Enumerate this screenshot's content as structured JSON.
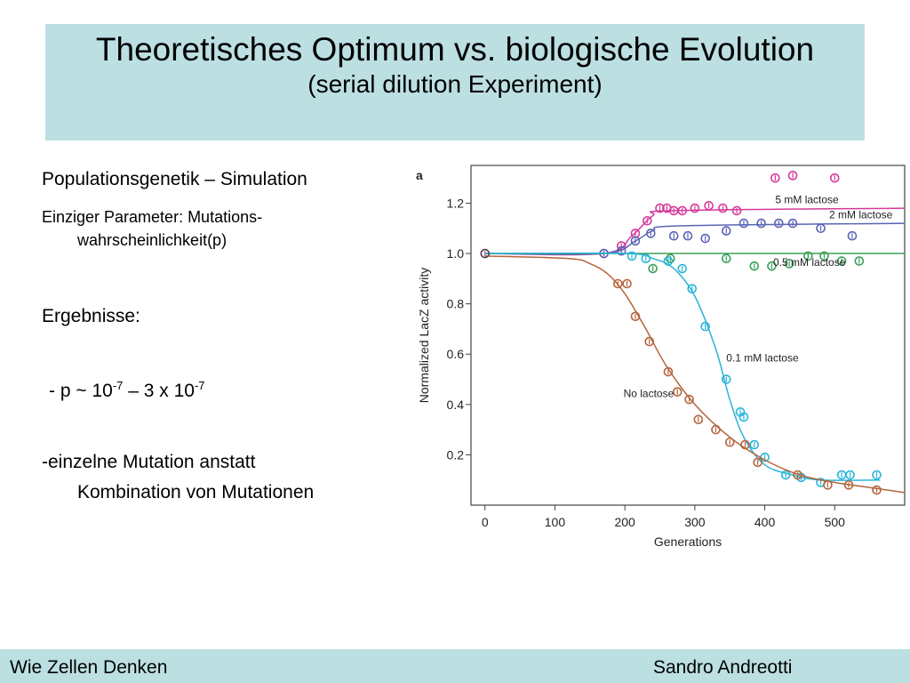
{
  "slide": {
    "title": "Theoretisches Optimum vs. biologische Evolution",
    "subtitle": "(serial dilution Experiment)",
    "lines": {
      "heading1": "Populationsgenetik – Simulation",
      "param_line1": "Einziger Parameter: Mutations-",
      "param_line2": "wahrscheinlichkeit(p)",
      "results": "Ergebnisse:",
      "p_prefix": "- p ~ 10",
      "p_exp1": "-7",
      "p_mid": " – 3 x 10",
      "p_exp2": "-7",
      "mutation_line1": "-einzelne Mutation anstatt",
      "mutation_line2": "Kombination von Mutationen"
    },
    "footer": {
      "left": "Wie Zellen Denken",
      "right": "Sandro Andreotti"
    }
  },
  "chart_data": {
    "type": "scatter",
    "panel_label": "a",
    "xlabel": "Generations",
    "ylabel": "Normalized LacZ activity",
    "xlim": [
      -20,
      600
    ],
    "ylim": [
      0,
      1.35
    ],
    "xticks": [
      0,
      100,
      200,
      300,
      400,
      500
    ],
    "yticks": [
      0.2,
      0.4,
      0.6,
      0.8,
      1.0,
      1.2
    ],
    "ytick_labels": [
      "0.2",
      "0.4",
      "0.6",
      "0.8",
      "1.0",
      "1.2"
    ],
    "series": [
      {
        "name": "5 mM lactose",
        "color": "#d63a9a",
        "points": [
          [
            0,
            1.0
          ],
          [
            170,
            1.0
          ],
          [
            195,
            1.03
          ],
          [
            215,
            1.08
          ],
          [
            232,
            1.13
          ],
          [
            250,
            1.18
          ],
          [
            260,
            1.18
          ],
          [
            270,
            1.17
          ],
          [
            282,
            1.17
          ],
          [
            300,
            1.18
          ],
          [
            320,
            1.19
          ],
          [
            340,
            1.18
          ],
          [
            360,
            1.17
          ],
          [
            415,
            1.3
          ],
          [
            440,
            1.31
          ],
          [
            500,
            1.3
          ]
        ],
        "curve": [
          [
            0,
            1.0
          ],
          [
            170,
            1.0
          ],
          [
            210,
            1.07
          ],
          [
            240,
            1.15
          ],
          [
            270,
            1.17
          ],
          [
            600,
            1.18
          ]
        ]
      },
      {
        "name": "2 mM lactose",
        "color": "#5a64b4",
        "points": [
          [
            170,
            1.0
          ],
          [
            195,
            1.01
          ],
          [
            215,
            1.05
          ],
          [
            237,
            1.08
          ],
          [
            270,
            1.07
          ],
          [
            290,
            1.07
          ],
          [
            315,
            1.06
          ],
          [
            345,
            1.09
          ],
          [
            370,
            1.12
          ],
          [
            395,
            1.12
          ],
          [
            420,
            1.12
          ],
          [
            440,
            1.12
          ],
          [
            480,
            1.1
          ],
          [
            525,
            1.07
          ]
        ],
        "curve": [
          [
            0,
            1.0
          ],
          [
            170,
            1.0
          ],
          [
            215,
            1.05
          ],
          [
            240,
            1.09
          ],
          [
            280,
            1.11
          ],
          [
            600,
            1.12
          ]
        ]
      },
      {
        "name": "0.5 mM lactose",
        "color": "#3aa05a",
        "points": [
          [
            240,
            0.94
          ],
          [
            265,
            0.98
          ],
          [
            345,
            0.98
          ],
          [
            385,
            0.95
          ],
          [
            410,
            0.95
          ],
          [
            435,
            0.96
          ],
          [
            462,
            0.99
          ],
          [
            485,
            0.99
          ],
          [
            510,
            0.97
          ],
          [
            535,
            0.97
          ]
        ],
        "curve": [
          [
            0,
            1.0
          ],
          [
            600,
            1.0
          ]
        ]
      },
      {
        "name": "0.1 mM lactose",
        "color": "#29b4d8",
        "points": [
          [
            210,
            0.99
          ],
          [
            230,
            0.98
          ],
          [
            262,
            0.97
          ],
          [
            282,
            0.94
          ],
          [
            296,
            0.86
          ],
          [
            315,
            0.71
          ],
          [
            345,
            0.5
          ],
          [
            365,
            0.37
          ],
          [
            370,
            0.35
          ],
          [
            385,
            0.24
          ],
          [
            400,
            0.19
          ],
          [
            430,
            0.12
          ],
          [
            452,
            0.11
          ],
          [
            480,
            0.09
          ],
          [
            510,
            0.12
          ],
          [
            522,
            0.12
          ],
          [
            560,
            0.12
          ]
        ],
        "curve": [
          [
            0,
            1.0
          ],
          [
            200,
            1.0
          ],
          [
            240,
            0.98
          ],
          [
            270,
            0.94
          ],
          [
            300,
            0.83
          ],
          [
            330,
            0.62
          ],
          [
            350,
            0.42
          ],
          [
            370,
            0.27
          ],
          [
            400,
            0.16
          ],
          [
            440,
            0.12
          ],
          [
            480,
            0.1
          ],
          [
            565,
            0.1
          ]
        ]
      },
      {
        "name": "No lactose",
        "color": "#b4643c",
        "points": [
          [
            190,
            0.88
          ],
          [
            203,
            0.88
          ],
          [
            215,
            0.75
          ],
          [
            235,
            0.65
          ],
          [
            262,
            0.53
          ],
          [
            275,
            0.45
          ],
          [
            292,
            0.42
          ],
          [
            305,
            0.34
          ],
          [
            330,
            0.3
          ],
          [
            350,
            0.25
          ],
          [
            372,
            0.24
          ],
          [
            390,
            0.17
          ],
          [
            447,
            0.12
          ],
          [
            490,
            0.08
          ],
          [
            520,
            0.08
          ],
          [
            560,
            0.06
          ]
        ],
        "curve": [
          [
            0,
            0.99
          ],
          [
            120,
            0.98
          ],
          [
            150,
            0.96
          ],
          [
            175,
            0.92
          ],
          [
            200,
            0.84
          ],
          [
            230,
            0.7
          ],
          [
            260,
            0.55
          ],
          [
            300,
            0.4
          ],
          [
            350,
            0.27
          ],
          [
            400,
            0.18
          ],
          [
            450,
            0.12
          ],
          [
            500,
            0.09
          ],
          [
            550,
            0.07
          ],
          [
            600,
            0.05
          ]
        ]
      }
    ],
    "annotations": [
      {
        "text": "5 mM lactose",
        "x": 415,
        "y": 1.2
      },
      {
        "text": "2 mM lactose",
        "x": 492,
        "y": 1.14
      },
      {
        "text": "0.5 mM lactose",
        "x": 412,
        "y": 0.95
      },
      {
        "text": "0.1 mM lactose",
        "x": 345,
        "y": 0.57
      },
      {
        "text": "No lactose",
        "x": 198,
        "y": 0.43
      }
    ]
  }
}
